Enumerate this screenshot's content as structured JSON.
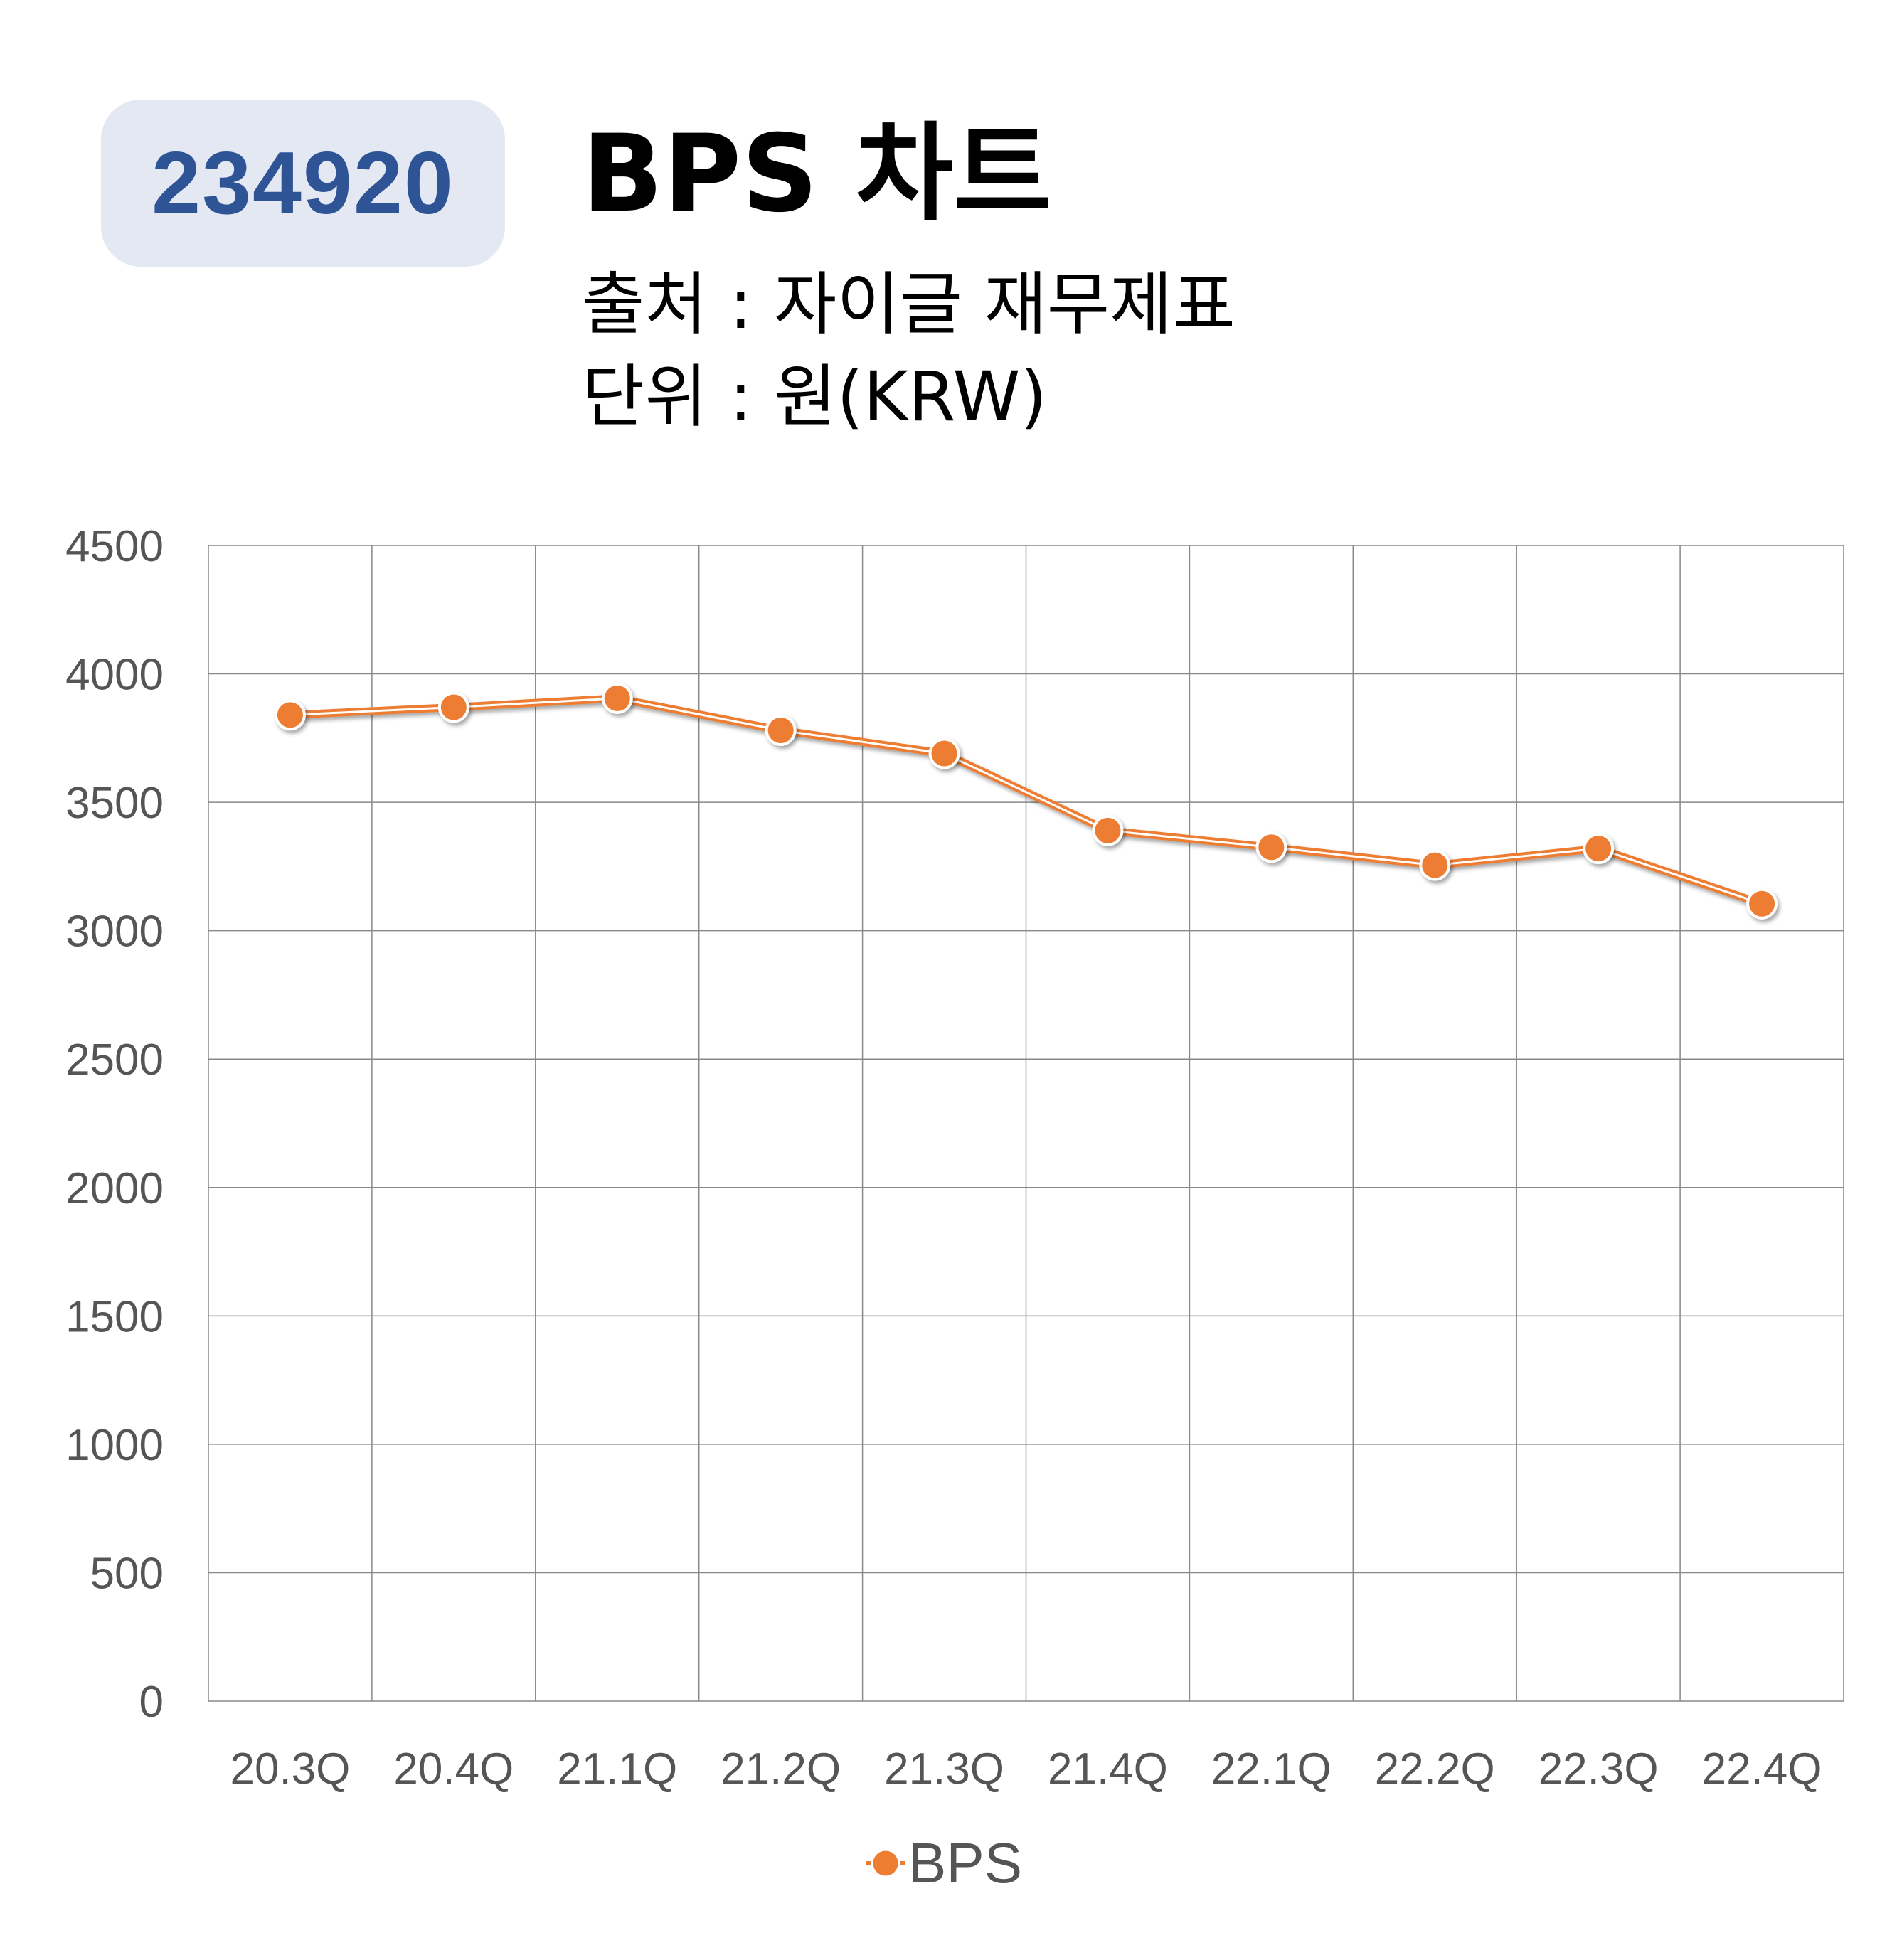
{
  "header": {
    "ticker": "234920",
    "title": "BPS 차트",
    "source": "출처 : 자이글 재무제표",
    "unit": "단위 : 원(KRW)"
  },
  "colors": {
    "series": "#ed7d31",
    "badge_bg": "#e3e8f3",
    "badge_text": "#2f5496",
    "grid": "#888888",
    "tick_text": "#555555"
  },
  "chart_data": {
    "type": "line",
    "categories": [
      "20.3Q",
      "20.4Q",
      "21.1Q",
      "21.2Q",
      "21.3Q",
      "21.4Q",
      "22.1Q",
      "22.2Q",
      "22.3Q",
      "22.4Q"
    ],
    "series": [
      {
        "name": "BPS",
        "values": [
          3840,
          3870,
          3905,
          3780,
          3690,
          3390,
          3325,
          3255,
          3320,
          3105
        ]
      }
    ],
    "ylim": [
      0,
      4500
    ],
    "yticks": [
      0,
      500,
      1000,
      1500,
      2000,
      2500,
      3000,
      3500,
      4000,
      4500
    ],
    "grid": true,
    "legend_position": "bottom-center"
  }
}
